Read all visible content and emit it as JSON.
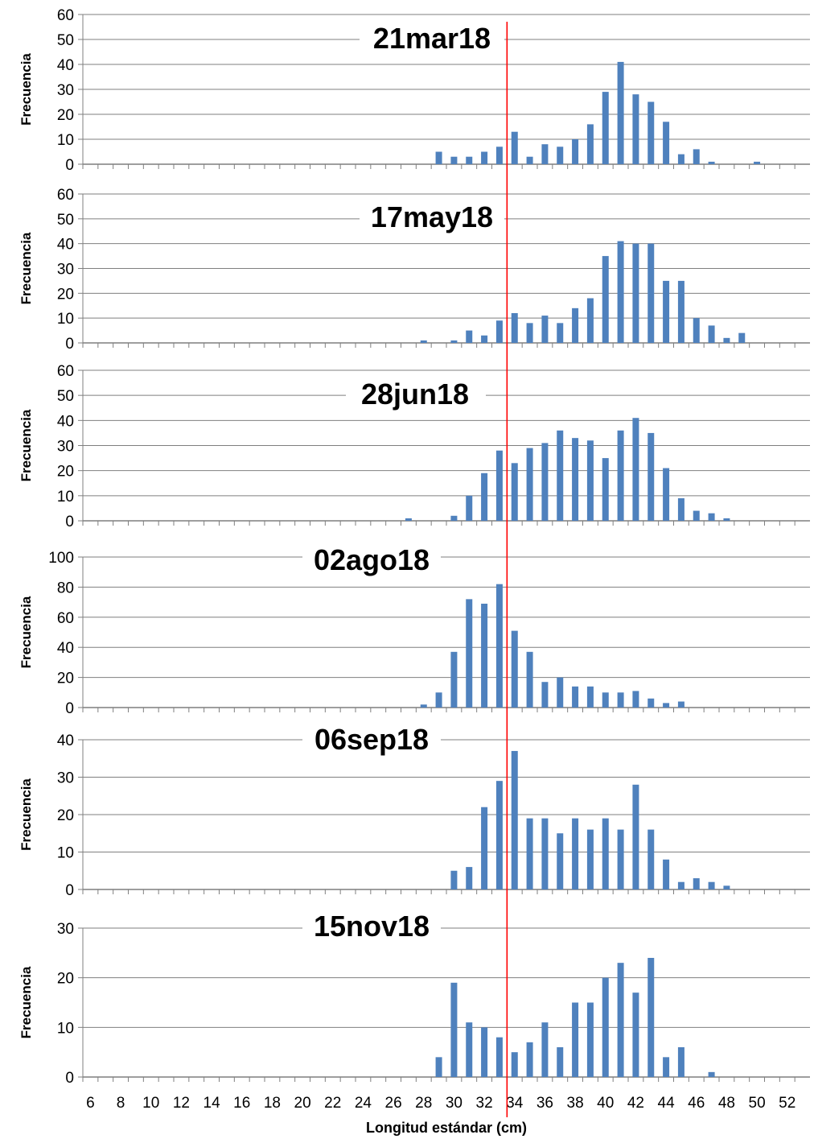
{
  "chart_data": {
    "type": "bar",
    "xlabel": "Longitud estándar (cm)",
    "x_tick_labels": [
      "6",
      "8",
      "10",
      "12",
      "14",
      "16",
      "18",
      "20",
      "22",
      "24",
      "26",
      "28",
      "30",
      "32",
      "34",
      "36",
      "38",
      "40",
      "42",
      "44",
      "46",
      "48",
      "50",
      "52"
    ],
    "x_range": [
      5.5,
      53.5
    ],
    "reference_line_x": 33.5,
    "colors": {
      "bars": "#4f81bd",
      "reference_line": "#ff0000",
      "grid": "#7f7f7f",
      "axis": "#7f7f7f"
    },
    "panels": [
      {
        "title": "21mar18",
        "ylabel": "Frecuencia",
        "ylim": [
          0,
          60
        ],
        "yticks": [
          "0",
          "10",
          "20",
          "30",
          "40",
          "50",
          "60"
        ],
        "x": [
          29,
          30,
          31,
          32,
          33,
          34,
          35,
          36,
          37,
          38,
          39,
          40,
          41,
          42,
          43,
          44,
          45,
          46,
          47,
          50
        ],
        "values": [
          5,
          3,
          3,
          5,
          7,
          13,
          3,
          8,
          7,
          10,
          16,
          29,
          41,
          28,
          25,
          17,
          4,
          6,
          1,
          1
        ]
      },
      {
        "title": "17may18",
        "ylabel": "Frecuencia",
        "ylim": [
          0,
          60
        ],
        "yticks": [
          "0",
          "10",
          "20",
          "30",
          "40",
          "50",
          "60"
        ],
        "x": [
          28,
          30,
          31,
          32,
          33,
          34,
          35,
          36,
          37,
          38,
          39,
          40,
          41,
          42,
          43,
          44,
          45,
          46,
          47,
          48,
          49
        ],
        "values": [
          1,
          1,
          5,
          3,
          9,
          12,
          8,
          11,
          8,
          14,
          18,
          35,
          41,
          40,
          40,
          25,
          25,
          10,
          7,
          2,
          4
        ]
      },
      {
        "title": "28jun18",
        "ylabel": "Frecuencia",
        "ylim": [
          0,
          60
        ],
        "yticks": [
          "0",
          "10",
          "20",
          "30",
          "40",
          "50",
          "60"
        ],
        "x": [
          27,
          30,
          31,
          32,
          33,
          34,
          35,
          36,
          37,
          38,
          39,
          40,
          41,
          42,
          43,
          44,
          45,
          46,
          47,
          48
        ],
        "values": [
          1,
          2,
          10,
          19,
          28,
          23,
          29,
          31,
          36,
          33,
          32,
          25,
          36,
          41,
          35,
          21,
          9,
          4,
          3,
          1
        ]
      },
      {
        "title": "02ago18",
        "ylabel": "Frecuencia",
        "ylim": [
          0,
          100
        ],
        "yticks": [
          "0",
          "20",
          "40",
          "60",
          "80",
          "100"
        ],
        "x": [
          28,
          29,
          30,
          31,
          32,
          33,
          34,
          35,
          36,
          37,
          38,
          39,
          40,
          41,
          42,
          43,
          44,
          45
        ],
        "values": [
          2,
          10,
          37,
          72,
          69,
          82,
          51,
          37,
          17,
          20,
          14,
          14,
          10,
          10,
          11,
          6,
          3,
          4
        ]
      },
      {
        "title": "06sep18",
        "ylabel": "Frecuencia",
        "ylim": [
          0,
          40
        ],
        "yticks": [
          "0",
          "10",
          "20",
          "30",
          "40"
        ],
        "x": [
          30,
          31,
          32,
          33,
          34,
          35,
          36,
          37,
          38,
          39,
          40,
          41,
          42,
          43,
          44,
          45,
          46,
          47,
          48
        ],
        "values": [
          5,
          6,
          22,
          29,
          37,
          19,
          19,
          15,
          19,
          16,
          19,
          16,
          28,
          16,
          8,
          2,
          3,
          2,
          1
        ]
      },
      {
        "title": "15nov18",
        "ylabel": "Frecuencia",
        "ylim": [
          0,
          30
        ],
        "yticks": [
          "0",
          "10",
          "20",
          "30"
        ],
        "x": [
          29,
          30,
          31,
          32,
          33,
          34,
          35,
          36,
          37,
          38,
          39,
          40,
          41,
          42,
          43,
          44,
          45,
          47
        ],
        "values": [
          4,
          19,
          11,
          10,
          8,
          5,
          7,
          11,
          6,
          15,
          15,
          20,
          23,
          17,
          24,
          4,
          6,
          1
        ]
      }
    ]
  }
}
